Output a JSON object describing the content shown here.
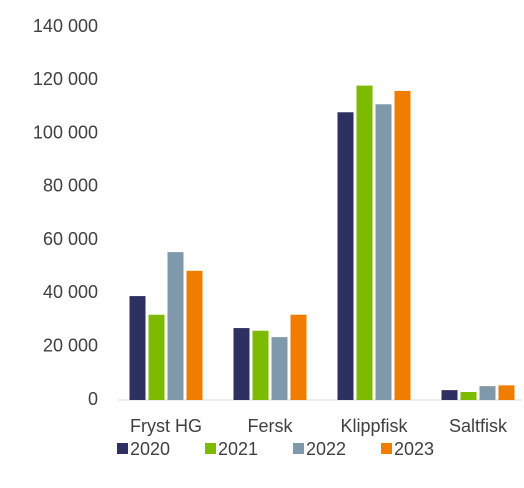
{
  "chart_data": {
    "type": "bar",
    "categories": [
      "Fryst HG",
      "Fersk",
      "Klippfisk",
      "Saltfisk"
    ],
    "series": [
      {
        "name": "2020",
        "color": "#2e3062",
        "values": [
          39000,
          27000,
          108000,
          3700
        ]
      },
      {
        "name": "2021",
        "color": "#7dba00",
        "values": [
          32000,
          26000,
          118000,
          3000
        ]
      },
      {
        "name": "2022",
        "color": "#7f99ab",
        "values": [
          55500,
          23600,
          111000,
          5200
        ]
      },
      {
        "name": "2023",
        "color": "#f07d00",
        "values": [
          48500,
          32000,
          116000,
          5500
        ]
      }
    ],
    "ylim": [
      0,
      140000
    ],
    "yticks": [
      0,
      {
        "value": 20000,
        "label": "20 000"
      },
      {
        "value": 40000,
        "label": "40 000"
      },
      {
        "value": 60000,
        "label": "60 000"
      },
      {
        "value": 80000,
        "label": "80 000"
      },
      {
        "value": 100000,
        "label": "100 000"
      },
      {
        "value": 120000,
        "label": "120 000"
      },
      {
        "value": 140000,
        "label": "140 000"
      }
    ],
    "grid": false,
    "legend": "bottom"
  }
}
